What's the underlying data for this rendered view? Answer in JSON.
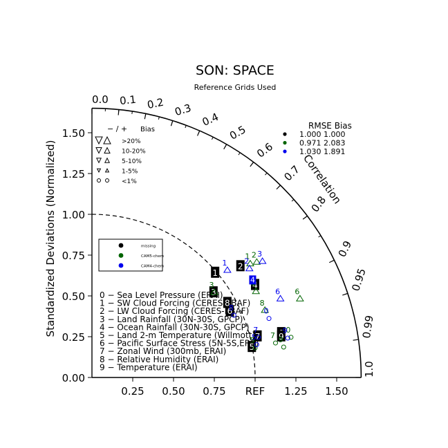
{
  "chart_data": {
    "type": "scatter",
    "title": "SON: SPACE",
    "subtitle": "Reference Grids Used",
    "ylabel": "Standardized Deviations (Normalized)",
    "arc_label": "Correlation",
    "ylim": [
      0,
      1.65
    ],
    "xlim": [
      0,
      1.65
    ],
    "y_ticks": [
      "0.00",
      "0.25",
      "0.50",
      "0.75",
      "1.00",
      "1.25",
      "1.50"
    ],
    "x_ticks": [
      "0.25",
      "0.50",
      "0.75",
      "REF",
      "1.25",
      "1.50"
    ],
    "corr_ticks": [
      "0.0",
      "0.1",
      "0.2",
      "0.3",
      "0.4",
      "0.5",
      "0.6",
      "0.7",
      "0.8",
      "0.9",
      "0.95",
      "0.99",
      "1.0"
    ],
    "bias_legend": {
      "header_sign": "− / +",
      "header_label": "Bias",
      "rows": [
        ">20%",
        "10-20%",
        "5-10%",
        "1-5%",
        "<1%"
      ]
    },
    "rmse_table": {
      "header": "RMSE  Bias",
      "rows": [
        {
          "color": "#000000",
          "text": "1.000 1.000"
        },
        {
          "color": "#006400",
          "text": "0.971 2.083"
        },
        {
          "color": "#0000ee",
          "text": "1.030 1.891"
        }
      ]
    },
    "legend": [
      {
        "color": "#000000",
        "label": "missing"
      },
      {
        "color": "#006400",
        "label": "CAM5-chem"
      },
      {
        "color": "#0000ee",
        "label": "CAM4-chem"
      }
    ],
    "variables": [
      "0 − Sea Level Pressure (ERAI)",
      "1 − SW Cloud Forcing (CERES-EBAF)",
      "2 − LW Cloud Forcing (CERES-EBAF)",
      "3 − Land Rainfall (30N-30S, GPCP)",
      "4 − Ocean Rainfall (30N-30S, GPCP)",
      "5 − Land 2-m Temperature (Willmott)",
      "6 − Pacific Surface Stress (5N-5S,ERS)",
      "7 − Zonal Wind (300mb, ERAI)",
      "8 − Relative Humidity (ERAI)",
      "9 − Temperature (ERAI)"
    ],
    "series": [
      {
        "name": "missing",
        "color": "#000000",
        "style": "box",
        "points": [
          {
            "label": "0",
            "x": 1.16,
            "y": 0.275
          },
          {
            "label": "1",
            "x": 0.755,
            "y": 0.645
          },
          {
            "label": "2",
            "x": 0.91,
            "y": 0.685
          },
          {
            "label": "3",
            "x": 0.745,
            "y": 0.525
          },
          {
            "label": "4",
            "x": 1.0,
            "y": 0.57
          },
          {
            "label": "5",
            "x": 0.98,
            "y": 0.19
          },
          {
            "label": "6",
            "x": 0.845,
            "y": 0.41
          },
          {
            "label": "7",
            "x": 1.015,
            "y": 0.255
          },
          {
            "label": "8",
            "x": 0.83,
            "y": 0.46
          },
          {
            "label": "9",
            "x": 1.16,
            "y": 0.255
          }
        ]
      },
      {
        "name": "CAM5-chem",
        "color": "#006400",
        "style": "text",
        "points": [
          {
            "label": "0",
            "x": 1.22,
            "y": 0.255,
            "marker": "circle"
          },
          {
            "label": "1",
            "x": 0.97,
            "y": 0.705,
            "marker": "triangle"
          },
          {
            "label": "2",
            "x": 1.01,
            "y": 0.715,
            "marker": "triangle"
          },
          {
            "label": "3",
            "x": 0.75,
            "y": 0.53,
            "marker": "triangle"
          },
          {
            "label": "4",
            "x": 1.005,
            "y": 0.535,
            "marker": "triangle"
          },
          {
            "label": "5",
            "x": 1.0,
            "y": 0.19,
            "marker": "circle"
          },
          {
            "label": "6",
            "x": 1.275,
            "y": 0.49,
            "marker": "triangle"
          },
          {
            "label": "7",
            "x": 1.125,
            "y": 0.22,
            "marker": "circle"
          },
          {
            "label": "8",
            "x": 1.06,
            "y": 0.42,
            "marker": "triangle"
          },
          {
            "label": "9",
            "x": 1.175,
            "y": 0.195,
            "marker": "circle"
          }
        ]
      },
      {
        "name": "CAM4-chem",
        "color": "#0000ee",
        "style": "text",
        "points": [
          {
            "label": "0",
            "x": 1.085,
            "y": 0.37,
            "marker": "circle"
          },
          {
            "label": "1",
            "x": 0.83,
            "y": 0.665,
            "marker": "triangle"
          },
          {
            "label": "2",
            "x": 0.965,
            "y": 0.675,
            "marker": "triangle"
          },
          {
            "label": "3",
            "x": 1.045,
            "y": 0.72,
            "marker": "triangle"
          },
          {
            "label": "4",
            "x": 0.985,
            "y": 0.6,
            "marker": "box"
          },
          {
            "label": "5",
            "x": 1.01,
            "y": 0.21,
            "marker": "circle"
          },
          {
            "label": "6",
            "x": 1.155,
            "y": 0.49,
            "marker": "triangle"
          },
          {
            "label": "7",
            "x": 1.02,
            "y": 0.255,
            "marker": "circle"
          },
          {
            "label": "8",
            "x": 0.87,
            "y": 0.39,
            "marker": "circle"
          },
          {
            "label": "9",
            "x": 1.2,
            "y": 0.25,
            "marker": "circle"
          }
        ]
      }
    ]
  }
}
